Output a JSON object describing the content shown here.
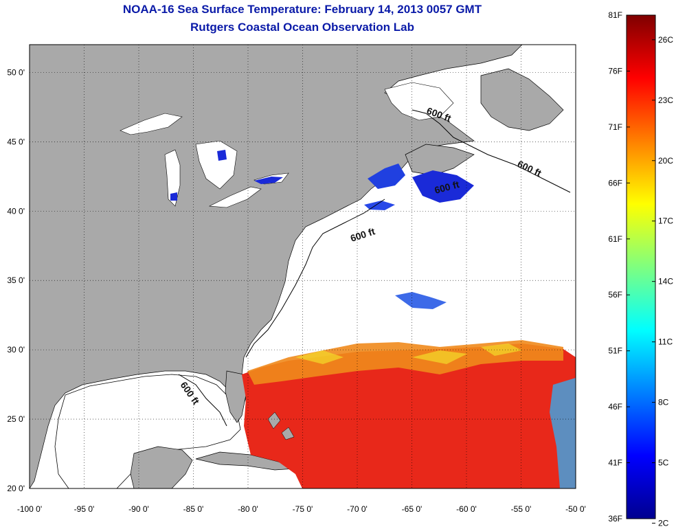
{
  "title": {
    "line1": "NOAA-16 Sea Surface Temperature:  February 14, 2013 0057 GMT",
    "line2": "Rutgers Coastal Ocean Observation Lab"
  },
  "map": {
    "lon_range": [
      -100,
      -50
    ],
    "lat_range": [
      20,
      52
    ],
    "x_ticks": [
      {
        "lon": -100,
        "label": "-100 0'"
      },
      {
        "lon": -95,
        "label": "-95 0'"
      },
      {
        "lon": -90,
        "label": "-90 0'"
      },
      {
        "lon": -85,
        "label": "-85 0'"
      },
      {
        "lon": -80,
        "label": "-80 0'"
      },
      {
        "lon": -75,
        "label": "-75 0'"
      },
      {
        "lon": -70,
        "label": "-70 0'"
      },
      {
        "lon": -65,
        "label": "-65 0'"
      },
      {
        "lon": -60,
        "label": "-60 0'"
      },
      {
        "lon": -55,
        "label": "-55 0'"
      },
      {
        "lon": -50,
        "label": "-50 0'"
      }
    ],
    "y_ticks": [
      {
        "lat": 20,
        "label": "20 0'"
      },
      {
        "lat": 25,
        "label": "25 0'"
      },
      {
        "lat": 30,
        "label": "30 0'"
      },
      {
        "lat": 35,
        "label": "35 0'"
      },
      {
        "lat": 40,
        "label": "40 0'"
      },
      {
        "lat": 45,
        "label": "45 0'"
      },
      {
        "lat": 50,
        "label": "50 0'"
      }
    ],
    "contour_labels": [
      "600 ft",
      "600 ft",
      "600 ft",
      "600 ft",
      "600 ft"
    ],
    "colors": {
      "land": "#a9a9a9",
      "water_no_data": "#ffffff",
      "warm": "#e8281a",
      "orange": "#f08a1c",
      "cold": "#1a2ad8"
    }
  },
  "colorbar": {
    "range_f": [
      36,
      81
    ],
    "fahrenheit_labels": [
      "81F",
      "76F",
      "71F",
      "66F",
      "61F",
      "56F",
      "51F",
      "46F",
      "41F",
      "36F"
    ],
    "celsius_labels": [
      "26C",
      "23C",
      "20C",
      "17C",
      "14C",
      "11C",
      "8C",
      "5C",
      "2C"
    ],
    "celsius_values": [
      26,
      23,
      20,
      17,
      14,
      11,
      8,
      5,
      2
    ]
  }
}
